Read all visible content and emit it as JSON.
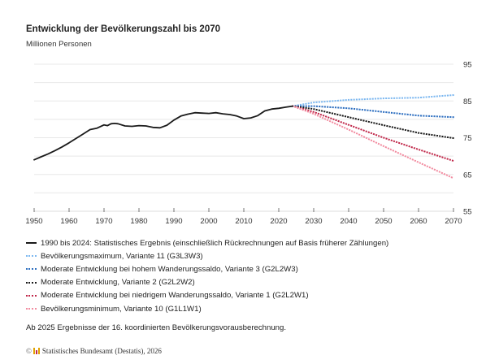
{
  "header": {
    "title": "Entwicklung der Bevölkerungszahl bis 2070",
    "subtitle": "Millionen Personen"
  },
  "legend": [
    {
      "label": "1990 bis 2024: Statistisches Ergebnis (einschließlich Rückrechnungen auf Basis früherer Zählungen)",
      "style": "solid",
      "color": "#1a1a1a"
    },
    {
      "label": "Bevölkerungsmaximum, Variante 11 (G3L3W3)",
      "style": "dotted",
      "color": "#7db8f0"
    },
    {
      "label": "Moderate Entwicklung bei hohem Wanderungssaldo, Variante 3 (G2L2W3)",
      "style": "dotted",
      "color": "#2e6fc0"
    },
    {
      "label": "Moderate Entwicklung, Variante 2 (G2L2W2)",
      "style": "dotted",
      "color": "#1a1a1a"
    },
    {
      "label": "Moderate Entwicklung bei niedrigem Wanderungssaldo, Variante 1 (G2L2W1)",
      "style": "dotted",
      "color": "#c0284a"
    },
    {
      "label": "Bevölkerungsminimum, Variante 10 (G1L1W1)",
      "style": "dotted",
      "color": "#f28ca0"
    }
  ],
  "note": "Ab 2025 Ergebnisse der 16. koordinierten Bevölkerungsvorausberechnung.",
  "source": {
    "copyright_icon": "©",
    "logo_icon": "destatis-logo-icon",
    "text": "Statistisches Bundesamt (Destatis), 2026"
  },
  "chart_data": {
    "type": "line",
    "title": "Entwicklung der Bevölkerungszahl bis 2070",
    "subtitle": "Millionen Personen",
    "xlabel": "",
    "ylabel": "Millionen Personen",
    "xlim": [
      1950,
      2070
    ],
    "ylim": [
      55,
      95
    ],
    "x_ticks": [
      1950,
      1960,
      1970,
      1980,
      1990,
      2000,
      2010,
      2020,
      2030,
      2040,
      2050,
      2060,
      2070
    ],
    "y_ticks": [
      55,
      65,
      75,
      85,
      95
    ],
    "y_gridlines": [
      55,
      60,
      65,
      70,
      75,
      80,
      85,
      90,
      95
    ],
    "y_axis_position": "right",
    "grid": true,
    "legend_position": "bottom",
    "series": [
      {
        "name": "1990 bis 2024: Statistisches Ergebnis (einschließlich Rückrechnungen auf Basis früherer Zählungen)",
        "style": "solid",
        "color": "#1a1a1a",
        "x": [
          1950,
          1952,
          1954,
          1956,
          1958,
          1960,
          1962,
          1964,
          1966,
          1968,
          1970,
          1971,
          1972,
          1973,
          1974,
          1976,
          1978,
          1980,
          1982,
          1984,
          1986,
          1988,
          1990,
          1992,
          1994,
          1996,
          1998,
          2000,
          2002,
          2004,
          2006,
          2008,
          2010,
          2012,
          2014,
          2016,
          2018,
          2020,
          2022,
          2024
        ],
        "y": [
          69.0,
          69.8,
          70.6,
          71.5,
          72.5,
          73.6,
          74.8,
          76.0,
          77.2,
          77.6,
          78.5,
          78.3,
          78.8,
          78.9,
          78.8,
          78.2,
          78.1,
          78.3,
          78.2,
          77.8,
          77.7,
          78.4,
          79.8,
          80.9,
          81.4,
          81.8,
          81.7,
          81.6,
          81.8,
          81.5,
          81.3,
          80.9,
          80.2,
          80.4,
          81.0,
          82.3,
          82.8,
          83.0,
          83.3,
          83.6
        ]
      },
      {
        "name": "Bevölkerungsmaximum, Variante 11 (G3L3W3)",
        "style": "dotted",
        "color": "#7db8f0",
        "x": [
          2024,
          2030,
          2040,
          2050,
          2060,
          2070
        ],
        "y": [
          83.6,
          84.6,
          85.3,
          85.7,
          85.9,
          86.6
        ]
      },
      {
        "name": "Moderate Entwicklung bei hohem Wanderungssaldo, Variante 3 (G2L2W3)",
        "style": "dotted",
        "color": "#2e6fc0",
        "x": [
          2024,
          2030,
          2040,
          2050,
          2060,
          2070
        ],
        "y": [
          83.6,
          83.6,
          83.0,
          82.0,
          81.0,
          80.6
        ]
      },
      {
        "name": "Moderate Entwicklung, Variante 2 (G2L2W2)",
        "style": "dotted",
        "color": "#1a1a1a",
        "x": [
          2024,
          2030,
          2040,
          2050,
          2060,
          2070
        ],
        "y": [
          83.6,
          82.8,
          80.6,
          78.4,
          76.3,
          74.9
        ]
      },
      {
        "name": "Moderate Entwicklung bei niedrigem Wanderungssaldo, Variante 1 (G2L2W1)",
        "style": "dotted",
        "color": "#c0284a",
        "x": [
          2024,
          2030,
          2040,
          2050,
          2060,
          2070
        ],
        "y": [
          83.6,
          82.0,
          78.5,
          75.0,
          71.8,
          68.7
        ]
      },
      {
        "name": "Bevölkerungsminimum, Variante 10 (G1L1W1)",
        "style": "dotted",
        "color": "#f28ca0",
        "x": [
          2024,
          2030,
          2040,
          2050,
          2060,
          2070
        ],
        "y": [
          83.6,
          81.5,
          77.2,
          72.7,
          68.3,
          64.0
        ]
      }
    ],
    "annotations": [
      "Ab 2025 Ergebnisse der 16. koordinierten Bevölkerungsvorausberechnung."
    ]
  }
}
